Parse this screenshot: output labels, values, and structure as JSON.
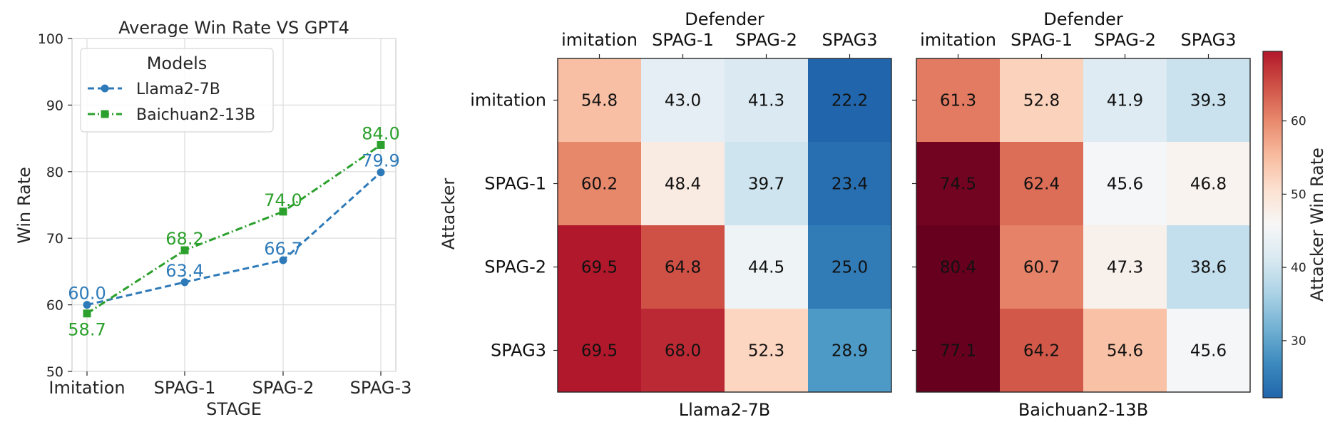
{
  "chart_data": [
    {
      "type": "line",
      "title": "Average Win Rate VS GPT4",
      "xlabel": "STAGE",
      "ylabel": "Win Rate",
      "categories": [
        "Imitation",
        "SPAG-1",
        "SPAG-2",
        "SPAG-3"
      ],
      "ylim": [
        50,
        100
      ],
      "yticks": [
        "50",
        "60",
        "70",
        "80",
        "90",
        "100"
      ],
      "grid": true,
      "legend": {
        "title": "Models",
        "placement": "upper-left"
      },
      "series": [
        {
          "name": "Llama2-7B",
          "values": [
            60.0,
            63.4,
            66.7,
            79.9
          ],
          "labels": [
            "60.0",
            "63.4",
            "66.7",
            "79.9"
          ],
          "color": "#2e7ab9",
          "style": "dashed",
          "marker": "circle"
        },
        {
          "name": "Baichuan2-13B",
          "values": [
            58.7,
            68.2,
            74.0,
            84.0
          ],
          "labels": [
            "58.7",
            "68.2",
            "74.0",
            "84.0"
          ],
          "color": "#2ca02c",
          "style": "dashdot",
          "marker": "square"
        }
      ]
    },
    {
      "type": "heatmap",
      "title": "Llama2-7B",
      "xlabel": "Defender",
      "ylabel": "Attacker",
      "columns": [
        "imitation",
        "SPAG-1",
        "SPAG-2",
        "SPAG3"
      ],
      "rows": [
        "imitation",
        "SPAG-1",
        "SPAG-2",
        "SPAG3"
      ],
      "values": [
        [
          54.8,
          43.0,
          41.3,
          22.2
        ],
        [
          60.2,
          48.4,
          39.7,
          23.4
        ],
        [
          69.5,
          64.8,
          44.5,
          25.0
        ],
        [
          69.5,
          68.0,
          52.3,
          28.9
        ]
      ],
      "labels": [
        [
          "54.8",
          "43.0",
          "41.3",
          "22.2"
        ],
        [
          "60.2",
          "48.4",
          "39.7",
          "23.4"
        ],
        [
          "69.5",
          "64.8",
          "44.5",
          "25.0"
        ],
        [
          "69.5",
          "68.0",
          "52.3",
          "28.9"
        ]
      ]
    },
    {
      "type": "heatmap",
      "title": "Baichuan2-13B",
      "xlabel": "Defender",
      "columns": [
        "imitation",
        "SPAG-1",
        "SPAG-2",
        "SPAG3"
      ],
      "rows": [
        "imitation",
        "SPAG-1",
        "SPAG-2",
        "SPAG3"
      ],
      "values": [
        [
          61.3,
          52.8,
          41.9,
          39.3
        ],
        [
          74.5,
          62.4,
          45.6,
          46.8
        ],
        [
          80.4,
          60.7,
          47.3,
          38.6
        ],
        [
          77.1,
          64.2,
          54.6,
          45.6
        ]
      ],
      "labels": [
        [
          "61.3",
          "52.8",
          "41.9",
          "39.3"
        ],
        [
          "74.5",
          "62.4",
          "45.6",
          "46.8"
        ],
        [
          "80.4",
          "60.7",
          "47.3",
          "38.6"
        ],
        [
          "77.1",
          "64.2",
          "54.6",
          "45.6"
        ]
      ]
    }
  ],
  "colorbar": {
    "label": "Attacker Win Rate",
    "range": [
      22.2,
      69.5
    ],
    "ticks": [
      "30",
      "40",
      "50",
      "60"
    ],
    "colormap": "RdBu_r"
  }
}
